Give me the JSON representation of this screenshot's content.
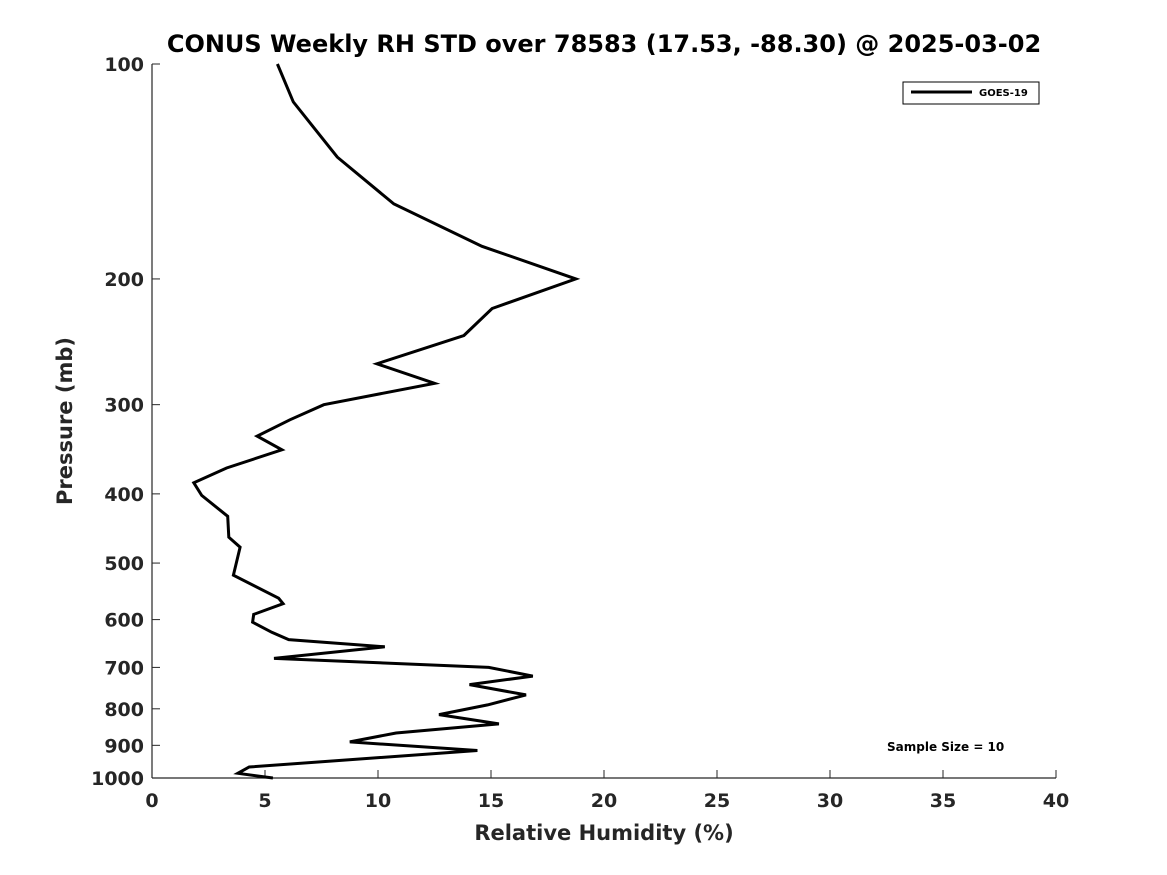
{
  "chart_data": {
    "type": "line",
    "title": "CONUS Weekly RH STD over 78583 (17.53, -88.30) @ 2025-03-02",
    "xlabel": "Relative Humidity (%)",
    "ylabel": "Pressure (mb)",
    "xlim": [
      0,
      40
    ],
    "ylim": [
      1000,
      100
    ],
    "yscale": "log",
    "y_inverted": true,
    "grid": false,
    "legend_position": "top-right",
    "x_ticks": [
      "0",
      "5",
      "10",
      "15",
      "20",
      "25",
      "30",
      "35",
      "40"
    ],
    "y_ticks": [
      "100",
      "200",
      "300",
      "400",
      "500",
      "600",
      "700",
      "800",
      "900",
      "1000"
    ],
    "series": [
      {
        "name": "GOES-19",
        "color": "#000000",
        "x": [
          5.55,
          6.25,
          8.2,
          10.7,
          14.6,
          18.75,
          15.05,
          13.8,
          9.95,
          12.5,
          7.6,
          6.1,
          4.65,
          5.75,
          3.3,
          1.85,
          2.2,
          3.35,
          3.4,
          3.9,
          3.6,
          5.6,
          5.8,
          4.5,
          4.45,
          5.3,
          6.05,
          10.3,
          5.4,
          14.9,
          16.85,
          14.05,
          16.55,
          14.85,
          12.7,
          15.35,
          10.8,
          8.75,
          14.4,
          4.3,
          3.8,
          5.35
        ],
        "y": [
          100,
          113,
          135,
          157,
          180,
          200,
          220,
          240,
          263,
          280,
          300,
          315,
          332,
          347,
          368,
          386,
          402,
          430,
          460,
          475,
          520,
          560,
          570,
          590,
          605,
          625,
          640,
          655,
          680,
          700,
          720,
          740,
          765,
          790,
          815,
          840,
          865,
          890,
          915,
          965,
          985,
          1000
        ]
      }
    ],
    "annotation": "Sample Size = 10"
  }
}
